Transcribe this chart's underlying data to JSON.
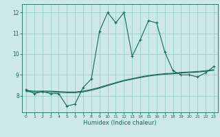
{
  "title": "",
  "xlabel": "Humidex (Indice chaleur)",
  "ylabel": "",
  "background_color": "#cce8e8",
  "grid_color": "#99cccc",
  "line_color": "#1a6655",
  "hours": [
    0,
    1,
    2,
    3,
    4,
    5,
    6,
    7,
    8,
    9,
    10,
    11,
    12,
    13,
    14,
    15,
    16,
    17,
    18,
    19,
    20,
    21,
    22,
    23
  ],
  "humidex": [
    8.3,
    8.1,
    8.2,
    8.1,
    8.1,
    7.5,
    7.6,
    8.4,
    8.8,
    11.1,
    12.0,
    11.5,
    12.0,
    9.9,
    10.7,
    11.6,
    11.5,
    10.1,
    9.2,
    9.0,
    9.0,
    8.9,
    9.1,
    9.4
  ],
  "smooth1": [
    8.25,
    8.22,
    8.22,
    8.22,
    8.2,
    8.18,
    8.18,
    8.22,
    8.3,
    8.4,
    8.52,
    8.63,
    8.74,
    8.82,
    8.9,
    8.97,
    9.02,
    9.06,
    9.08,
    9.12,
    9.14,
    9.16,
    9.2,
    9.25
  ],
  "smooth2": [
    8.2,
    8.18,
    8.18,
    8.18,
    8.16,
    8.14,
    8.14,
    8.18,
    8.26,
    8.36,
    8.48,
    8.6,
    8.71,
    8.79,
    8.87,
    8.94,
    8.99,
    9.03,
    9.05,
    9.09,
    9.11,
    9.13,
    9.17,
    9.22
  ],
  "ylim": [
    7.2,
    12.4
  ],
  "yticks": [
    8,
    9,
    10,
    11,
    12
  ],
  "xticks": [
    0,
    1,
    2,
    3,
    4,
    5,
    6,
    7,
    8,
    9,
    10,
    11,
    12,
    13,
    14,
    15,
    16,
    17,
    18,
    19,
    20,
    21,
    22,
    23
  ]
}
